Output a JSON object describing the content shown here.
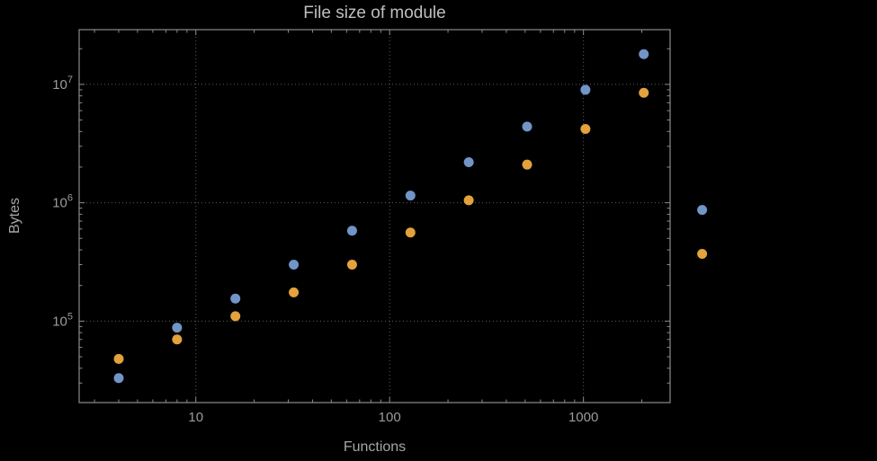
{
  "title": "File size of module",
  "axes": {
    "x_label": "Functions",
    "y_label": "Bytes"
  },
  "colors": {
    "background": "#000000",
    "frame": "#8c8c8c",
    "grid": "#5c5c5c",
    "tick_text": "#9b9b9b",
    "title_text": "#bfbfbf",
    "axis_label_text": "#a6a6a6",
    "series1": "#7295c8",
    "series2": "#e3a23c"
  },
  "chart_data": {
    "type": "scatter",
    "title": "File size of module",
    "xlabel": "Functions",
    "ylabel": "Bytes",
    "x_scale": "log",
    "y_scale": "log",
    "xlim": [
      2.5,
      2800
    ],
    "ylim": [
      20500,
      29000000
    ],
    "x_ticks": [
      10,
      100,
      1000
    ],
    "x_tick_labels": [
      "10",
      "100",
      "1000"
    ],
    "y_ticks": [
      100000,
      1000000,
      10000000
    ],
    "y_tick_exponents": [
      5,
      6,
      7
    ],
    "grid": true,
    "grid_style": "dotted",
    "legend": false,
    "marker_radius": 5.5,
    "series": [
      {
        "name": "series-blue",
        "color_key": "series1",
        "points": [
          [
            4,
            33000
          ],
          [
            8,
            88000
          ],
          [
            16,
            155000
          ],
          [
            32,
            300000
          ],
          [
            64,
            580000
          ],
          [
            128,
            1150000
          ],
          [
            256,
            2200000
          ],
          [
            512,
            4400000
          ],
          [
            1024,
            9000000
          ],
          [
            2048,
            18000000
          ],
          [
            4096,
            870000
          ]
        ]
      },
      {
        "name": "series-orange",
        "color_key": "series2",
        "points": [
          [
            4,
            48000
          ],
          [
            8,
            70000
          ],
          [
            16,
            110000
          ],
          [
            32,
            175000
          ],
          [
            64,
            300000
          ],
          [
            128,
            560000
          ],
          [
            256,
            1050000
          ],
          [
            512,
            2100000
          ],
          [
            1024,
            4200000
          ],
          [
            2048,
            8500000
          ],
          [
            4096,
            370000
          ]
        ]
      }
    ]
  }
}
